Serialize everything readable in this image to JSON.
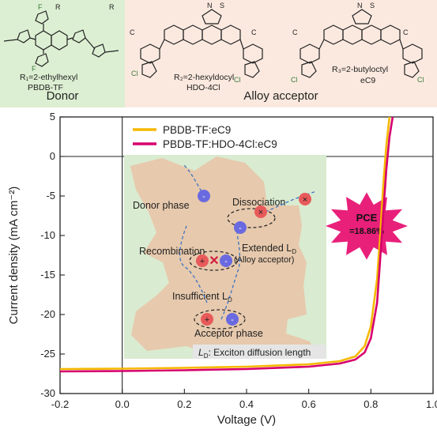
{
  "top": {
    "donor_label": "Donor",
    "acceptor_label": "Alloy acceptor",
    "molecules": [
      {
        "sub": "R₁=2-ethylhexyl",
        "name": "PBDB-TF"
      },
      {
        "sub": "R₂=2-hexyldocyl",
        "name": "HDO-4Cl"
      },
      {
        "sub": "R₃=2-butyloctyl",
        "name": "eC9"
      }
    ]
  },
  "inset": {
    "donor_phase": "Donor phase",
    "dissociation": "Dissociation",
    "recombination": "Recombination",
    "extended": "Extended L",
    "extended_sub": "D",
    "alloy_acceptor": "(Alloy acceptor)",
    "insufficient": "Insufficient L",
    "insufficient_sub": "D",
    "acceptor_phase": "Acceptor phase",
    "ld_note_prefix": "L",
    "ld_note_sub": "D",
    "ld_note_text": ": Exciton diffusion length"
  },
  "badge": {
    "line1": "PCE",
    "line2": "=18.86%",
    "color": "#e8207a"
  },
  "chart_data": {
    "type": "line",
    "xlabel": "Voltage (V)",
    "ylabel": "Current density (mA cm⁻²)",
    "xlim": [
      -0.2,
      1.0
    ],
    "ylim": [
      -30,
      5
    ],
    "xticks": [
      -0.2,
      0.0,
      0.2,
      0.4,
      0.6,
      0.8,
      1.0
    ],
    "xtick_labels": [
      "-0.2",
      "0.0",
      "0.2",
      "0.4",
      "0.6",
      "0.8",
      "1.0"
    ],
    "yticks": [
      -30,
      -25,
      -20,
      -15,
      -10,
      -5,
      0,
      5
    ],
    "ytick_labels": [
      "-30",
      "-25",
      "-20",
      "-15",
      "-10",
      "-5",
      "0",
      "5"
    ],
    "series": [
      {
        "name": "PBDB-TF:eC9",
        "color": "#f5b800",
        "x": [
          -0.2,
          0.0,
          0.2,
          0.4,
          0.6,
          0.7,
          0.75,
          0.78,
          0.8,
          0.82,
          0.83,
          0.84,
          0.85,
          0.86
        ],
        "y": [
          -26.9,
          -26.85,
          -26.75,
          -26.6,
          -26.3,
          -25.9,
          -25.3,
          -24.0,
          -21.5,
          -15.5,
          -10.0,
          -3.5,
          1.5,
          5.0
        ]
      },
      {
        "name": "PBDB-TF:HDO-4Cl:eC9",
        "color": "#d6006e",
        "x": [
          -0.2,
          0.0,
          0.2,
          0.4,
          0.6,
          0.7,
          0.75,
          0.78,
          0.8,
          0.82,
          0.83,
          0.84,
          0.85,
          0.86,
          0.87
        ],
        "y": [
          -27.2,
          -27.15,
          -27.05,
          -26.9,
          -26.6,
          -26.2,
          -25.7,
          -24.8,
          -23.0,
          -18.5,
          -13.0,
          -7.0,
          -1.5,
          2.5,
          5.0
        ]
      }
    ]
  }
}
